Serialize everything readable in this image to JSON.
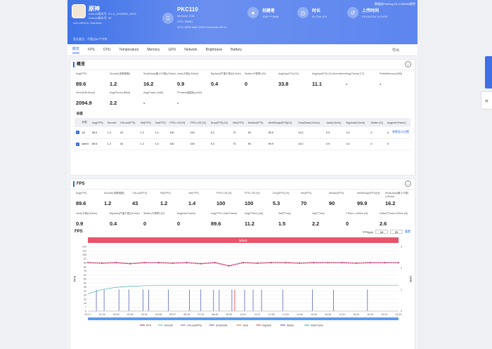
{
  "header": {
    "app_name": "原神",
    "app_version": "Android版本号: 3.1.0_11116861_3315...",
    "app_sdk": "Android版本号: 30",
    "package": "com.miHoYo.Yuanshen",
    "note": "暂无备注，不超过60个字符",
    "device_name": "PKC110",
    "device_memory": "Memory: 1GB",
    "device_cpu": "CPU: H8961",
    "device_gpu": "GPU: ARM Mali-G925 Immortalis MC12",
    "creator_title": "创建者",
    "creator_value": "108*****3646",
    "duration_title": "时长",
    "duration_value": "0h 22m 47s",
    "upload_title": "上传时间",
    "upload_value": "21/10/2024 11:04:03",
    "top_right": "数据由PerfDog 10.4.240930提供"
  },
  "tabs": [
    "概览",
    "FPS",
    "CPU",
    "Temperature",
    "Memory",
    "GPU",
    "Network",
    "Brightness",
    "Battery"
  ],
  "tabs_more": "导出",
  "overview": {
    "title": "概览",
    "row1": [
      {
        "label": "Avg(FPS)",
        "value": "89.6"
      },
      {
        "label": "Smooth(流畅指数)",
        "value": "1.2"
      },
      {
        "label": "SmallJank(微小卡顿)(/10min)",
        "value": "16.2"
      },
      {
        "label": "Jank(卡顿)(/10min)",
        "value": "0.9"
      },
      {
        "label": "BigJank(严重卡顿)(/10min)",
        "value": "0.4"
      },
      {
        "label": "Stutter(卡顿率) [%]",
        "value": "0"
      },
      {
        "label": "Avg(AppCPU) [%]",
        "value": "33.8"
      },
      {
        "label": "Avg(AppCPU) [%] Normalized",
        "value": "11.1"
      },
      {
        "label": "Avg(Ctemp) [°C]",
        "value": "-"
      },
      {
        "label": "Peak(Memory) [MB]",
        "value": "-"
      }
    ],
    "row2": [
      {
        "label": "Send [KB/10min]",
        "value": "2094.9"
      },
      {
        "label": "Avg(Recvd) [KB/s]",
        "value": "2.2"
      },
      {
        "label": "Avg(Power) [mW]",
        "value": "-"
      },
      {
        "label": "FPower(帧能耗) [mW]",
        "value": "-"
      }
    ],
    "table_title": "标签",
    "table_link": "参数显示设置",
    "columns": [
      "标签",
      "Avg(FPS)",
      "Smooth",
      "1%Low(FPS)",
      "Std(FPS)",
      "Var(FPS)",
      "FPS>=18 [%]",
      "FPS>=25 [%]",
      "Drop(FPS) [%]",
      "Min(FPS)",
      "Median(FPS)",
      "MedRange(FPS)[%]",
      "SmallJank(/10min)",
      "Jank(/10min)",
      "BigJank(/10min)",
      "Stutter [%]",
      "Avg(InterFrame)"
    ],
    "rows": [
      [
        "All",
        "89.6",
        "1.2",
        "43",
        "1.2",
        "1.4",
        "100",
        "100",
        "5.3",
        "70",
        "90",
        "99.9",
        "16.2",
        "0.9",
        "0.4",
        "0",
        "0"
      ],
      [
        "label1",
        "89.6",
        "1.2",
        "43",
        "1.2",
        "1.4",
        "100",
        "100",
        "5.3",
        "70",
        "90",
        "99.9",
        "16.2",
        "0.9",
        "0.4",
        "0",
        "0"
      ]
    ]
  },
  "fps_section": {
    "title": "FPS",
    "row1": [
      {
        "label": "Avg(FPS)",
        "value": "89.6"
      },
      {
        "label": "Smooth(流畅指数)",
        "value": "1.2"
      },
      {
        "label": "1%Low(FPS)",
        "value": "43"
      },
      {
        "label": "Std(FPS)",
        "value": "1.2"
      },
      {
        "label": "Var(FPS)",
        "value": "1.4"
      },
      {
        "label": "FPS>=18 [%]",
        "value": "100"
      },
      {
        "label": "FPS>=25 [%]",
        "value": "100"
      },
      {
        "label": "Drop(FPS) [%]",
        "value": "5.3"
      },
      {
        "label": "Min(FPS)",
        "value": "70"
      },
      {
        "label": "Median(FPS)",
        "value": "90"
      },
      {
        "label": "MedRange(FPS)[%]",
        "value": "99.9"
      },
      {
        "label": "SmallJank(微小卡顿)(/10min)",
        "value": "16.2"
      }
    ],
    "row2": [
      {
        "label": "Jank(卡顿)(/10min)",
        "value": "0.9"
      },
      {
        "label": "BigJank(严重卡顿)(/10min)",
        "value": "0.4"
      },
      {
        "label": "Stutter(卡顿率) [%]",
        "value": "0"
      },
      {
        "label": "Avg(InterFrame)",
        "value": "0"
      },
      {
        "label": "Avg(FPS>=InterFrame)",
        "value": "89.6"
      },
      {
        "label": "Avg(FTime) [ms]",
        "value": "11.2"
      },
      {
        "label": "Std(FTime)",
        "value": "1.5"
      },
      {
        "label": "Var(FTime)",
        "value": "2.2"
      },
      {
        "label": "FTime>=100ms [%]",
        "value": "0"
      },
      {
        "label": "Delta(FTime)>100ms [/h]",
        "value": "2.6"
      }
    ],
    "chart_title": "FPS",
    "range_label": "FPS(px)",
    "range_min": "18",
    "range_max": "20",
    "reset": "重置"
  },
  "chart_data": {
    "type": "line",
    "band_label": "label1",
    "ylabel": "FPS",
    "y2label": "Jank",
    "ylim": [
      0,
      120
    ],
    "y2lim": [
      0,
      3
    ],
    "y_ticks": [
      0,
      7,
      15,
      22,
      30,
      37,
      45,
      52,
      60,
      67,
      75,
      82,
      90,
      97,
      105,
      112,
      120
    ],
    "y2_ticks": [
      0,
      1,
      2,
      3
    ],
    "x_ticks": [
      "00:17",
      "01:25",
      "02:03",
      "03:00",
      "03:41",
      "04:38",
      "05:37",
      "06:45",
      "07:23",
      "08:40",
      "09:39",
      "10:57",
      "11:37",
      "12:35",
      "13:20",
      "14:33",
      "15:43",
      "16:35",
      "17:41",
      "18:20",
      "19:25",
      "20:22",
      "21:49"
    ],
    "series": [
      {
        "name": "FPS",
        "color": "#c2185b",
        "values": [
          90,
          89,
          90,
          88,
          90,
          90,
          89,
          90,
          88,
          90,
          84,
          90,
          89,
          90,
          90,
          89,
          90,
          90,
          90,
          89,
          90,
          90,
          90
        ]
      },
      {
        "name": "Smooth",
        "color": "#4db6ac",
        "values": [
          0.8,
          1.0,
          1.1,
          1.15,
          1.18,
          1.2,
          1.2,
          1.2,
          1.2,
          1.2,
          1.2,
          1.2,
          1.2,
          1.2,
          1.2,
          1.2,
          1.2,
          1.2,
          1.2,
          1.2,
          1.2,
          1.2,
          1.2
        ]
      },
      {
        "name": "1%Low(FPS)"
      },
      {
        "name": "SmallJank"
      },
      {
        "name": "Jank"
      },
      {
        "name": "BigJank"
      },
      {
        "name": "Stutter"
      },
      {
        "name": "InterFrame"
      }
    ],
    "legend_colors": [
      "#c2185b",
      "#4db6ac",
      "#7e57c2",
      "#3f51b5",
      "#ef6c00",
      "#e53935",
      "#3949ab",
      "#26a69a"
    ],
    "small_jank_times": [
      0.6,
      1.15,
      2.2,
      2.9,
      3.9,
      4.3,
      5.7,
      7.2,
      8.0,
      8.9,
      9.3,
      10.2,
      11.1,
      11.7,
      12.3,
      13.8,
      15.9,
      17.4,
      19.8
    ],
    "small_jank_height": 1,
    "jank_times": [
      10.4
    ],
    "legend_position": "bottom"
  }
}
